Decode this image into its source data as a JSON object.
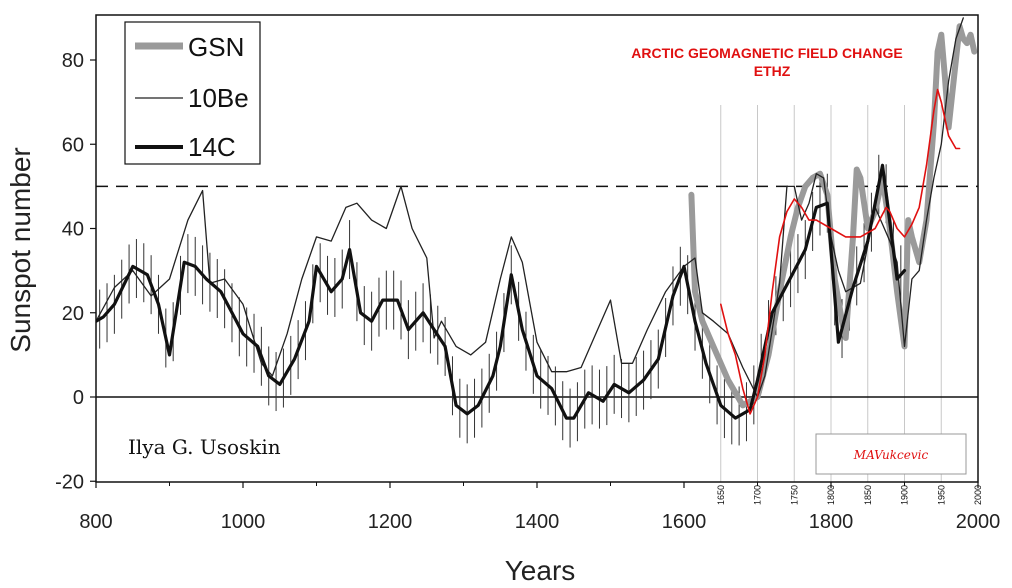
{
  "chart_data": {
    "type": "line",
    "title": "",
    "xlabel": "Years",
    "ylabel": "Sunspot number",
    "xlim": [
      800,
      2000
    ],
    "ylim": [
      -20,
      90
    ],
    "x_ticks": [
      800,
      1000,
      1200,
      1400,
      1600,
      1800,
      2000
    ],
    "y_ticks": [
      -20,
      0,
      20,
      40,
      60,
      80
    ],
    "grid": false,
    "legend_position": "top-left",
    "legend": [
      {
        "name": "GSN",
        "style": "thick-gray",
        "color": "#9a9a9a"
      },
      {
        "name": "10Be",
        "style": "thin-black",
        "color": "#222222"
      },
      {
        "name": "14C",
        "style": "thick-black",
        "color": "#111111"
      }
    ],
    "reference_lines": [
      {
        "y": 50,
        "style": "dashed"
      },
      {
        "y": 0,
        "style": "solid"
      }
    ],
    "series": [
      {
        "name": "GSN",
        "color": "#9a9a9a",
        "x": [
          1610,
          1615,
          1625,
          1640,
          1660,
          1680,
          1700,
          1715,
          1730,
          1745,
          1755,
          1765,
          1775,
          1785,
          1795,
          1805,
          1815,
          1820,
          1830,
          1835,
          1840,
          1850,
          1860,
          1870,
          1880,
          1890,
          1900,
          1905,
          1910,
          1920,
          1930,
          1940,
          1945,
          1950,
          1955,
          1960,
          1970,
          1975,
          1980,
          1985,
          1990,
          1995
        ],
        "y": [
          48,
          25,
          18,
          12,
          4,
          -2,
          0,
          10,
          25,
          38,
          45,
          50,
          52,
          53,
          48,
          28,
          18,
          14,
          38,
          54,
          52,
          40,
          44,
          52,
          40,
          25,
          12,
          42,
          38,
          32,
          42,
          65,
          82,
          86,
          76,
          64,
          80,
          88,
          85,
          84,
          86,
          82
        ]
      },
      {
        "name": "10Be",
        "color": "#222222",
        "x": [
          800,
          825,
          850,
          875,
          900,
          925,
          945,
          955,
          975,
          1000,
          1025,
          1040,
          1060,
          1080,
          1100,
          1120,
          1140,
          1155,
          1175,
          1195,
          1215,
          1230,
          1250,
          1260,
          1270,
          1290,
          1310,
          1330,
          1350,
          1365,
          1380,
          1400,
          1420,
          1440,
          1460,
          1480,
          1500,
          1515,
          1530,
          1550,
          1575,
          1600,
          1615,
          1625,
          1640,
          1660,
          1680,
          1700,
          1710,
          1730,
          1740,
          1750,
          1760,
          1770,
          1780,
          1790,
          1800,
          1810,
          1820,
          1840,
          1860,
          1870,
          1880,
          1890,
          1900,
          1910,
          1920,
          1930,
          1940,
          1950,
          1960,
          1970,
          1980
        ],
        "y": [
          18,
          26,
          30,
          24,
          28,
          42,
          49,
          27,
          28,
          22,
          8,
          5,
          15,
          28,
          38,
          37,
          45,
          46,
          42,
          40,
          50,
          40,
          33,
          14,
          18,
          12,
          10,
          13,
          28,
          38,
          32,
          13,
          6,
          6,
          7,
          15,
          23,
          8,
          8,
          16,
          25,
          31,
          33,
          20,
          18,
          15,
          7,
          0,
          5,
          27,
          50,
          50,
          42,
          46,
          53,
          52,
          38,
          30,
          25,
          27,
          45,
          41,
          37,
          32,
          12,
          28,
          30,
          42,
          52,
          60,
          75,
          85,
          90
        ]
      },
      {
        "name": "14C",
        "color": "#111111",
        "x": [
          800,
          810,
          825,
          850,
          870,
          885,
          900,
          920,
          935,
          950,
          970,
          985,
          1000,
          1020,
          1035,
          1050,
          1070,
          1090,
          1100,
          1120,
          1135,
          1145,
          1160,
          1175,
          1190,
          1210,
          1225,
          1245,
          1260,
          1275,
          1290,
          1305,
          1320,
          1340,
          1350,
          1365,
          1380,
          1400,
          1420,
          1440,
          1450,
          1470,
          1490,
          1505,
          1525,
          1545,
          1565,
          1585,
          1600,
          1615,
          1630,
          1650,
          1670,
          1690,
          1700,
          1720,
          1735,
          1750,
          1765,
          1780,
          1795,
          1810,
          1830,
          1850,
          1870,
          1890,
          1900
        ],
        "y": [
          18,
          19,
          22,
          31,
          29,
          22,
          10,
          32,
          31,
          28,
          25,
          20,
          15,
          12,
          5,
          3,
          9,
          18,
          31,
          25,
          28,
          35,
          20,
          18,
          23,
          23,
          16,
          20,
          16,
          12,
          -2,
          -4,
          -2,
          5,
          12,
          29,
          16,
          5,
          2,
          -5,
          -5,
          1,
          -1,
          3,
          1,
          4,
          9,
          24,
          31,
          18,
          8,
          -2,
          -5,
          -3,
          4,
          20,
          25,
          30,
          35,
          45,
          46,
          13,
          26,
          37,
          55,
          28,
          30
        ]
      },
      {
        "name": "ARCTIC GEOMAGNETIC FIELD CHANGE ETHZ",
        "color": "#e01010",
        "x": [
          1650,
          1660,
          1670,
          1680,
          1690,
          1700,
          1710,
          1720,
          1730,
          1740,
          1750,
          1760,
          1770,
          1780,
          1800,
          1820,
          1840,
          1860,
          1875,
          1880,
          1890,
          1900,
          1910,
          1920,
          1930,
          1940,
          1945,
          1950,
          1960,
          1970,
          1975
        ],
        "y": [
          22,
          15,
          10,
          2,
          -4,
          0,
          10,
          25,
          38,
          44,
          47,
          45,
          42,
          42,
          40,
          38,
          38,
          40,
          45,
          44,
          40,
          38,
          41,
          45,
          55,
          68,
          73,
          70,
          62,
          59,
          59
        ]
      }
    ],
    "vertical_lines": [
      1650,
      1700,
      1750,
      1800,
      1850,
      1900,
      1950,
      2000
    ],
    "annotations": {
      "red_title_line1": "ARCTIC  GEOMAGNETIC FIELD CHANGE",
      "red_title_line2": "ETHZ",
      "author": "Ilya G. Usoskin",
      "signature": "MAVukcevic"
    }
  }
}
